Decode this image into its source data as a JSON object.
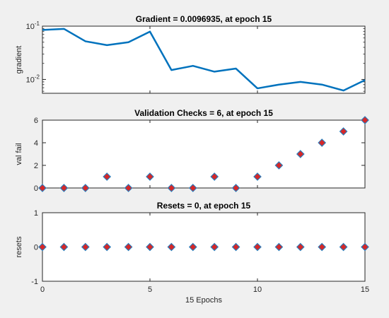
{
  "chart_data": [
    {
      "type": "line",
      "title": "Gradient = 0.0096935, at epoch 15",
      "ylabel": "gradient",
      "xlabel": "",
      "xlim": [
        0,
        15
      ],
      "ylim": [
        0.0055,
        0.1
      ],
      "yscale": "log",
      "yticks": [
        {
          "value": 0.1,
          "base": "10",
          "exp": "-1"
        },
        {
          "value": 0.01,
          "base": "10",
          "exp": "-2"
        }
      ],
      "color": "#0072bd",
      "x": [
        0,
        1,
        2,
        3,
        4,
        5,
        6,
        7,
        8,
        9,
        10,
        11,
        12,
        13,
        14,
        15
      ],
      "y": [
        0.085,
        0.089,
        0.052,
        0.044,
        0.05,
        0.079,
        0.015,
        0.018,
        0.014,
        0.016,
        0.0068,
        0.008,
        0.009,
        0.008,
        0.0062,
        0.0097
      ]
    },
    {
      "type": "scatter",
      "title": "Validation Checks = 6, at epoch 15",
      "ylabel": "val fail",
      "xlabel": "",
      "xlim": [
        0,
        15
      ],
      "ylim": [
        0,
        6
      ],
      "yticks": [
        0,
        2,
        4,
        6
      ],
      "marker_fill": "#d62728",
      "marker_edge": "#2b7bb9",
      "x": [
        0,
        1,
        2,
        3,
        4,
        5,
        6,
        7,
        8,
        9,
        10,
        11,
        12,
        13,
        14,
        15
      ],
      "y": [
        0,
        0,
        0,
        1,
        0,
        1,
        0,
        0,
        1,
        0,
        1,
        2,
        3,
        4,
        5,
        6
      ]
    },
    {
      "type": "scatter",
      "title": "Resets = 0, at epoch 15",
      "ylabel": "resets",
      "xlabel": "15 Epochs",
      "xlim": [
        0,
        15
      ],
      "ylim": [
        -1,
        1
      ],
      "yticks": [
        -1,
        0,
        1
      ],
      "xticks": [
        0,
        5,
        10,
        15
      ],
      "marker_fill": "#d62728",
      "marker_edge": "#2b7bb9",
      "x": [
        0,
        1,
        2,
        3,
        4,
        5,
        6,
        7,
        8,
        9,
        10,
        11,
        12,
        13,
        14,
        15
      ],
      "y": [
        0,
        0,
        0,
        0,
        0,
        0,
        0,
        0,
        0,
        0,
        0,
        0,
        0,
        0,
        0,
        0
      ]
    }
  ]
}
